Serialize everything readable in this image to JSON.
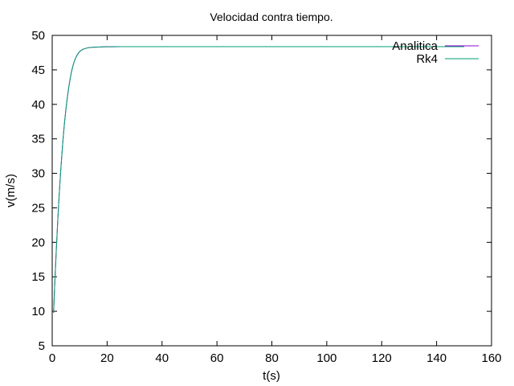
{
  "chart_data": {
    "type": "line",
    "title": "Velocidad contra tiempo.",
    "xlabel": "t(s)",
    "ylabel": "v(m/s)",
    "xlim": [
      0,
      160
    ],
    "ylim": [
      5,
      50
    ],
    "xticks": [
      0,
      20,
      40,
      60,
      80,
      100,
      120,
      140,
      160
    ],
    "yticks": [
      5,
      10,
      15,
      20,
      25,
      30,
      35,
      40,
      45,
      50
    ],
    "grid": false,
    "legend_position": "top-right",
    "series": [
      {
        "name": "Analitica",
        "color": "#9400d3",
        "x": [
          0.5,
          1,
          1.5,
          2,
          2.5,
          3,
          3.5,
          4,
          4.5,
          5,
          5.5,
          6,
          6.5,
          7,
          7.5,
          8,
          8.5,
          9,
          9.5,
          10,
          11,
          12,
          13,
          14,
          15,
          16,
          18,
          20,
          22,
          25,
          30,
          40,
          60,
          80,
          100,
          120,
          140,
          150
        ],
        "y": [
          9.8,
          14.6,
          19.0,
          23.0,
          26.6,
          29.8,
          32.6,
          35.2,
          37.4,
          39.3,
          41.0,
          42.4,
          43.6,
          44.7,
          45.5,
          46.2,
          46.7,
          47.1,
          47.4,
          47.65,
          47.95,
          48.1,
          48.2,
          48.25,
          48.28,
          48.3,
          48.33,
          48.35,
          48.36,
          48.37,
          48.37,
          48.37,
          48.37,
          48.37,
          48.37,
          48.37,
          48.37,
          48.37
        ]
      },
      {
        "name": "Rk4",
        "color": "#009e73",
        "x": [
          0.5,
          1,
          1.5,
          2,
          2.5,
          3,
          3.5,
          4,
          4.5,
          5,
          5.5,
          6,
          6.5,
          7,
          7.5,
          8,
          8.5,
          9,
          9.5,
          10,
          11,
          12,
          13,
          14,
          15,
          16,
          18,
          20,
          22,
          25,
          30,
          40,
          60,
          80,
          100,
          120,
          140,
          150
        ],
        "y": [
          9.8,
          14.6,
          19.0,
          23.0,
          26.6,
          29.8,
          32.6,
          35.2,
          37.4,
          39.3,
          41.0,
          42.4,
          43.6,
          44.7,
          45.5,
          46.2,
          46.7,
          47.1,
          47.4,
          47.65,
          47.95,
          48.1,
          48.2,
          48.25,
          48.28,
          48.3,
          48.33,
          48.35,
          48.36,
          48.37,
          48.37,
          48.37,
          48.37,
          48.37,
          48.37,
          48.37,
          48.37,
          48.37
        ]
      }
    ]
  }
}
